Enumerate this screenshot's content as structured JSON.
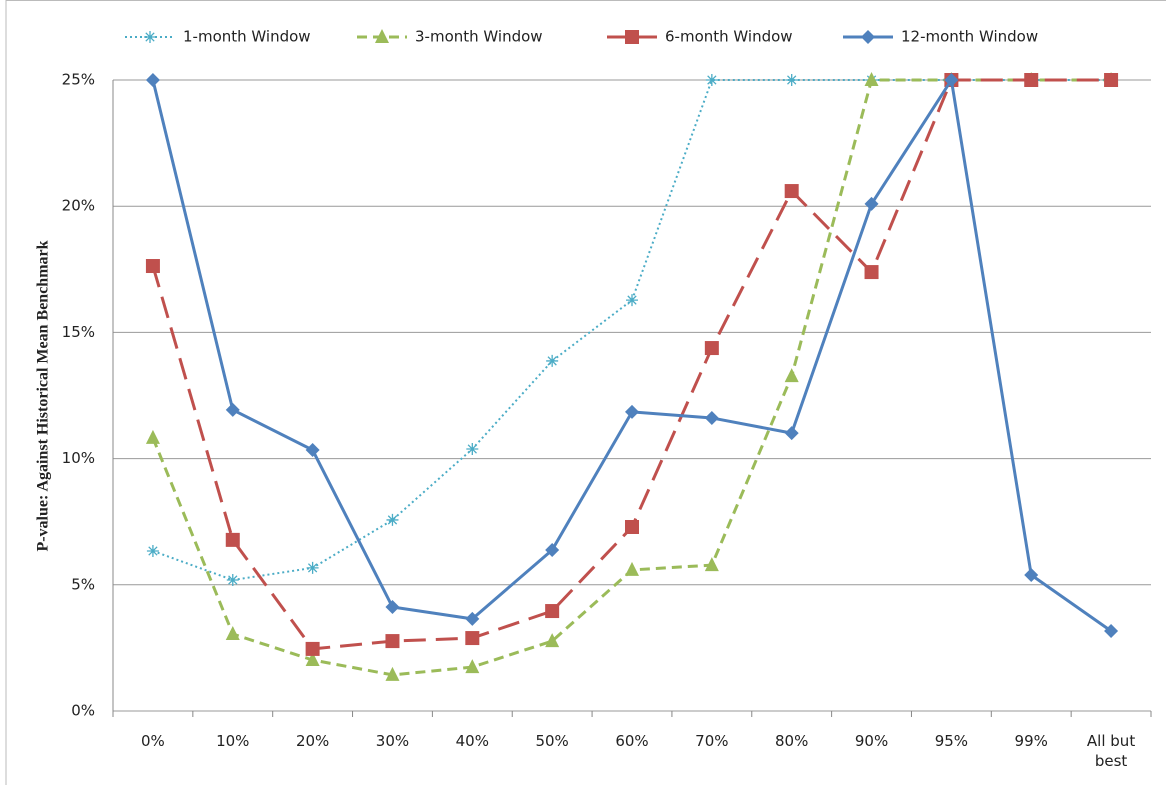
{
  "chart_data": {
    "type": "line",
    "y_label": "P-value: Against Historical Mean Benchmark",
    "categories": [
      "0%",
      "10%",
      "20%",
      "30%",
      "40%",
      "50%",
      "60%",
      "70%",
      "80%",
      "90%",
      "95%",
      "99%",
      "All but best"
    ],
    "series": [
      {
        "name": "1-month Window",
        "color": "#4bacc6",
        "values": [
          6.34,
          5.19,
          5.67,
          7.57,
          10.38,
          13.87,
          16.28,
          25,
          25,
          25,
          25,
          25,
          25
        ]
      },
      {
        "name": "3-month Window",
        "color": "#9bbb59",
        "values": [
          10.82,
          3.05,
          2.02,
          1.43,
          1.74,
          2.77,
          5.59,
          5.78,
          13.27,
          25,
          25,
          25,
          25
        ]
      },
      {
        "name": "6-month Window",
        "color": "#c0504d",
        "values": [
          17.63,
          6.78,
          2.46,
          2.77,
          2.89,
          3.96,
          7.29,
          14.38,
          20.6,
          17.39,
          25,
          25,
          25
        ]
      },
      {
        "name": "12-month Window",
        "color": "#4f81bd",
        "values": [
          25,
          11.93,
          10.34,
          4.12,
          3.65,
          6.38,
          11.85,
          11.61,
          11.01,
          20.09,
          25,
          5.39,
          3.17
        ]
      }
    ],
    "ylim": [
      0,
      25
    ],
    "yticks": [
      {
        "value": 0,
        "label": "0%"
      },
      {
        "value": 5,
        "label": "5%"
      },
      {
        "value": 10,
        "label": "10%"
      },
      {
        "value": 15,
        "label": "15%"
      },
      {
        "value": 20,
        "label": "20%"
      },
      {
        "value": 25,
        "label": "25%"
      }
    ],
    "grid": true,
    "legend": "top"
  }
}
